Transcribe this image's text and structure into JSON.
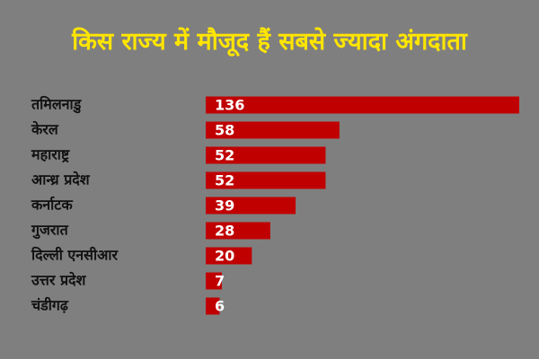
{
  "chart_data": {
    "type": "hbar",
    "title": "किस राज्य में मौजूद हैं सबसे ज्यादा अंगदाता",
    "categories": [
      "तमिलनाडु",
      "केरल",
      "महाराष्ट्र",
      "आन्ध्र प्रदेश",
      "कर्नाटक",
      "गुजरात",
      "दिल्ली एनसीआर",
      "उत्तर प्रदेश",
      "चंडीगढ़"
    ],
    "values": [
      136,
      58,
      52,
      52,
      39,
      28,
      20,
      7,
      6
    ],
    "color": "#c00000"
  }
}
